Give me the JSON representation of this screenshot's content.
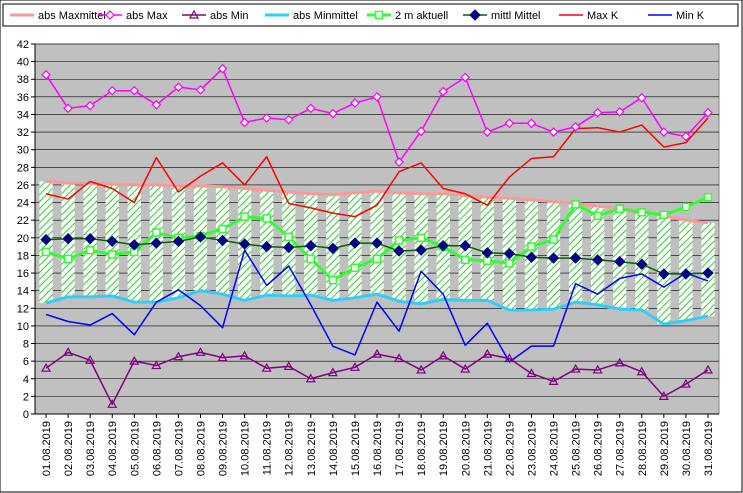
{
  "chart_data": {
    "type": "line",
    "ylim": [
      0,
      42
    ],
    "ytick_step": 2,
    "categories": [
      "01.08.2019",
      "02.08.2019",
      "03.08.2019",
      "04.08.2019",
      "05.08.2019",
      "06.08.2019",
      "07.08.2019",
      "08.08.2019",
      "09.08.2019",
      "10.08.2019",
      "11.08.2019",
      "12.08.2019",
      "13.08.2019",
      "14.08.2019",
      "15.08.2019",
      "16.08.2019",
      "17.08.2019",
      "18.08.2019",
      "19.08.2019",
      "20.08.2019",
      "21.08.2019",
      "22.08.2019",
      "23.08.2019",
      "24.08.2019",
      "25.08.2019",
      "26.08.2019",
      "27.08.2019",
      "28.08.2019",
      "29.08.2019",
      "30.08.2019",
      "31.08.2019"
    ],
    "series": [
      {
        "name": "abs Maxmittel",
        "color": "#ff9999",
        "marker": "none",
        "width": 3,
        "values": [
          26.4,
          26.2,
          26.2,
          26.1,
          26.0,
          26.0,
          25.9,
          25.9,
          25.8,
          25.6,
          25.4,
          25.2,
          25.0,
          24.9,
          25.1,
          25.3,
          25.1,
          25.0,
          25.0,
          24.8,
          24.6,
          24.5,
          24.3,
          24.1,
          23.9,
          23.6,
          23.3,
          23.0,
          22.5,
          22.0,
          21.7
        ]
      },
      {
        "name": "abs Max",
        "color": "#ff00ff",
        "marker": "diamond-open",
        "width": 1.5,
        "values": [
          38.5,
          34.7,
          35.0,
          36.7,
          36.7,
          35.1,
          37.1,
          36.8,
          39.2,
          33.1,
          33.6,
          33.4,
          34.7,
          34.1,
          35.3,
          36.0,
          28.6,
          32.1,
          36.6,
          38.2,
          32.0,
          33.0,
          33.0,
          32.0,
          32.6,
          34.2,
          34.3,
          35.9,
          32.0,
          31.5,
          34.2
        ]
      },
      {
        "name": "abs Min",
        "color": "#800080",
        "marker": "triangle-open",
        "width": 1.5,
        "values": [
          5.2,
          7.0,
          6.1,
          1.1,
          6.0,
          5.5,
          6.5,
          7.0,
          6.4,
          6.6,
          5.2,
          5.4,
          4.0,
          4.7,
          5.3,
          6.8,
          6.3,
          5.0,
          6.6,
          5.1,
          6.8,
          6.3,
          4.6,
          3.7,
          5.1,
          5.0,
          5.8,
          4.8,
          2.0,
          3.4,
          5.0
        ]
      },
      {
        "name": "abs Minmittel",
        "color": "#33ccff",
        "marker": "none",
        "width": 3,
        "values": [
          12.6,
          13.3,
          13.3,
          13.4,
          12.7,
          12.7,
          13.2,
          14.0,
          13.6,
          12.9,
          13.5,
          13.4,
          13.5,
          12.9,
          13.2,
          13.6,
          12.8,
          12.5,
          13.0,
          12.9,
          12.9,
          11.8,
          11.8,
          11.9,
          12.7,
          12.4,
          11.9,
          11.8,
          10.2,
          10.6,
          11.1
        ]
      },
      {
        "name": "2 m aktuell",
        "color": "#33ff33",
        "marker": "square-open",
        "width": 3,
        "values": [
          18.4,
          17.6,
          18.6,
          18.1,
          18.4,
          20.6,
          20.0,
          20.2,
          21.0,
          22.4,
          22.2,
          20.1,
          17.6,
          15.2,
          16.6,
          17.6,
          19.7,
          20.0,
          19.0,
          17.5,
          17.4,
          17.1,
          19.0,
          19.8,
          23.8,
          22.5,
          23.3,
          22.9,
          22.6,
          23.5,
          24.6
        ]
      },
      {
        "name": "mittl Mittel",
        "color": "#006600",
        "marker": "diamond",
        "marker_color": "#000080",
        "width": 1.5,
        "values": [
          19.8,
          19.9,
          19.9,
          19.6,
          19.2,
          19.4,
          19.6,
          20.1,
          19.7,
          19.3,
          19.0,
          18.9,
          19.1,
          18.8,
          19.4,
          19.4,
          18.5,
          18.6,
          19.1,
          19.1,
          18.3,
          18.2,
          17.8,
          17.7,
          17.7,
          17.5,
          17.3,
          17.0,
          15.9,
          15.9,
          16.0
        ]
      },
      {
        "name": "Max K",
        "color": "#ff0000",
        "marker": "none",
        "width": 1.5,
        "values": [
          25.0,
          24.4,
          26.4,
          25.6,
          24.0,
          29.1,
          25.2,
          27.0,
          28.5,
          26.0,
          29.2,
          23.9,
          23.4,
          22.8,
          22.4,
          23.7,
          27.5,
          28.5,
          25.6,
          25.0,
          23.7,
          26.9,
          29.0,
          29.2,
          32.4,
          32.5,
          32.0,
          32.8,
          30.3,
          30.8,
          33.6
        ]
      },
      {
        "name": "Min K",
        "color": "#0000ff",
        "marker": "none",
        "width": 1.5,
        "values": [
          11.3,
          10.5,
          10.1,
          11.4,
          9.0,
          12.7,
          14.1,
          12.3,
          9.8,
          18.6,
          14.6,
          16.8,
          12.4,
          7.7,
          6.7,
          12.7,
          9.4,
          16.2,
          13.6,
          7.8,
          10.3,
          5.9,
          7.7,
          7.7,
          14.8,
          13.6,
          15.4,
          15.9,
          14.4,
          16.0,
          15.1
        ]
      }
    ]
  }
}
